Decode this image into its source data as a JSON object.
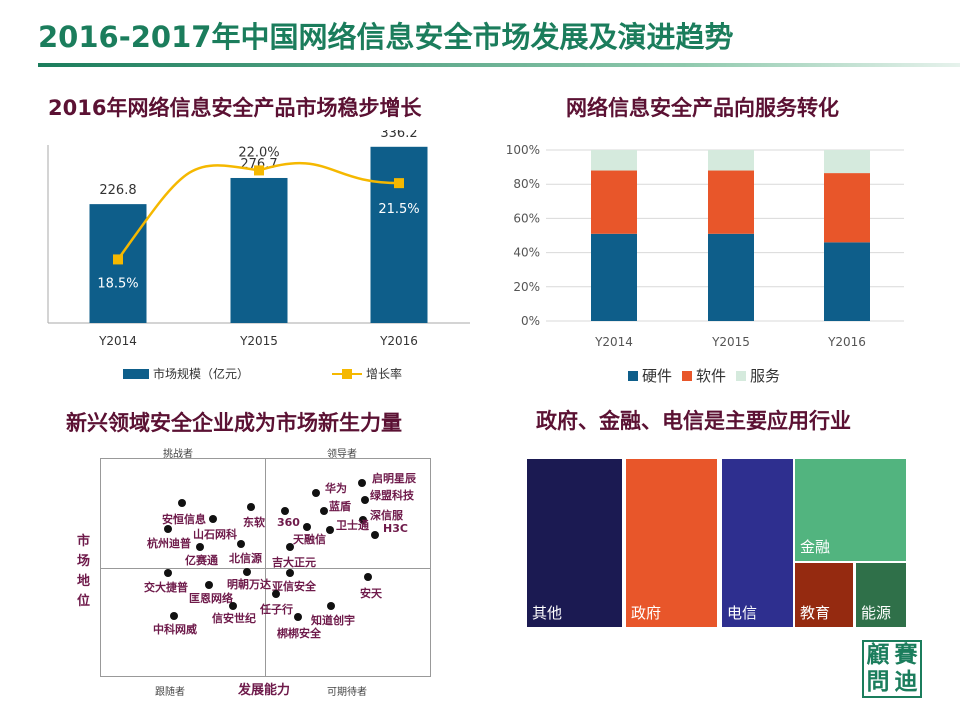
{
  "title": "2016-2017年中国网络信息安全市场发展及演进趋势",
  "sections": {
    "s1": "2016年网络信息安全产品市场稳步增长",
    "s2": "网络信息安全产品向服务转化",
    "s3": "新兴领域安全企业成为市场新生力量",
    "s4": "政府、金融、电信是主要应用行业"
  },
  "chart_data": [
    {
      "type": "bar",
      "title": "2016年网络信息安全产品市场稳步增长",
      "categories": [
        "Y2014",
        "Y2015",
        "Y2016"
      ],
      "series": [
        {
          "name": "市场规模（亿元）",
          "type": "bar",
          "values": [
            226.8,
            276.7,
            336.2
          ],
          "labels": [
            "226.8",
            "276.7",
            "336.2"
          ],
          "color": "#0e5e8a"
        },
        {
          "name": "增长率",
          "type": "line",
          "values": [
            18.5,
            22.0,
            21.5
          ],
          "labels": [
            "18.5%",
            "22.0%",
            "21.5%"
          ],
          "color": "#f5b800"
        }
      ],
      "ylim": [
        0,
        360
      ],
      "y2lim": [
        16,
        23
      ],
      "legend": "bottom"
    },
    {
      "type": "bar",
      "stacked": true,
      "title": "网络信息安全产品向服务转化",
      "categories": [
        "Y2014",
        "Y2015",
        "Y2016"
      ],
      "yticks": [
        "0%",
        "20%",
        "40%",
        "60%",
        "80%",
        "100%"
      ],
      "series": [
        {
          "name": "硬件",
          "values": [
            51,
            51,
            46
          ],
          "color": "#0e5e8a"
        },
        {
          "name": "软件",
          "values": [
            37,
            37,
            40.5
          ],
          "color": "#e8562a"
        },
        {
          "name": "服务",
          "values": [
            12,
            12,
            13.5
          ],
          "color": "#d5eadd"
        }
      ],
      "ylim": [
        0,
        100
      ],
      "legend": "bottom"
    },
    {
      "type": "scatter",
      "title": "新兴领域安全企业成为市场新生力量",
      "xlabel": "发展能力",
      "ylabel": "市场地位",
      "quadrants": {
        "tl": "挑战者",
        "tr": "领导者",
        "bl": "跟随者",
        "br": "可期待者"
      },
      "points": [
        "启明星辰",
        "华为",
        "绿盟科技",
        "蓝盾",
        "深信服",
        "卫士通",
        "H3C",
        "360",
        "天融信",
        "吉大正元",
        "东软",
        "北信源",
        "安恒信息",
        "山石网科",
        "杭州迪普",
        "亿赛通",
        "交大捷普",
        "明朝万达",
        "亚信安全",
        "匡恩网络",
        "安天",
        "任子行",
        "信安世纪",
        "知道创宇",
        "中科网威",
        "梆梆安全"
      ]
    },
    {
      "type": "treemap",
      "title": "政府、金融、电信是主要应用行业",
      "categories": [
        "其他",
        "政府",
        "电信",
        "金融",
        "教育",
        "能源"
      ],
      "colors": [
        "#1b1a52",
        "#e8562a",
        "#2e2f8f",
        "#52b47f",
        "#952a10",
        "#2f7049"
      ]
    }
  ],
  "logo": "赛迪顾问"
}
